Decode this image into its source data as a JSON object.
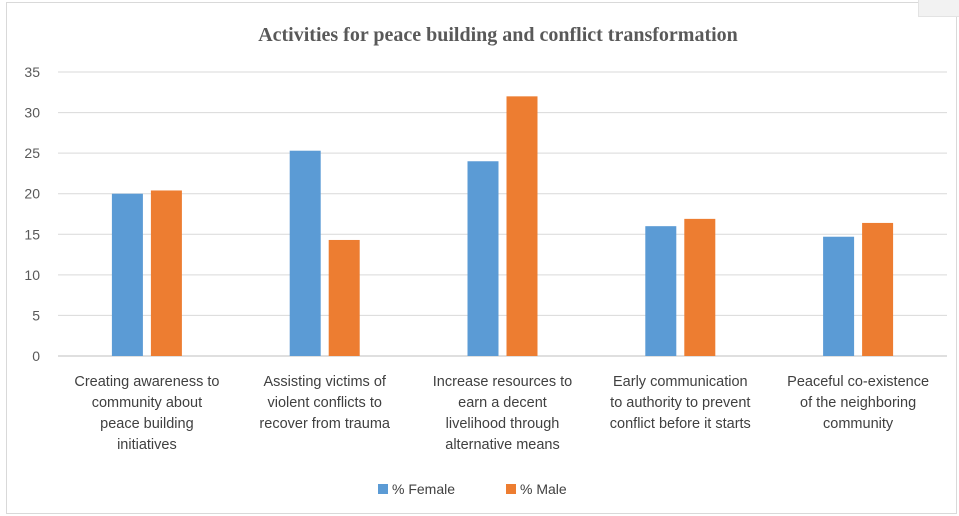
{
  "chart_data": {
    "type": "bar",
    "title": "Activities for peace building and conflict transformation",
    "categories": [
      [
        "Creating awareness to",
        "community about",
        "peace building",
        "initiatives"
      ],
      [
        "Assisting victims of",
        "violent conflicts to",
        "recover from trauma"
      ],
      [
        "Increase resources to",
        "earn a decent",
        "livelihood through",
        "alternative means"
      ],
      [
        "Early communication",
        "to authority to prevent",
        "conflict before it starts"
      ],
      [
        "Peaceful co-existence",
        "of the neighboring",
        "community"
      ]
    ],
    "series": [
      {
        "name": "% Female",
        "color": "#5b9bd5",
        "values": [
          20.0,
          25.3,
          24.0,
          16.0,
          14.7
        ]
      },
      {
        "name": "% Male",
        "color": "#ed7d31",
        "values": [
          20.4,
          14.3,
          32.0,
          16.9,
          16.4
        ]
      }
    ],
    "ylim": [
      0,
      35
    ],
    "yticks": [
      "0",
      "5",
      "10",
      "15",
      "20",
      "25",
      "30",
      "35"
    ],
    "grid": true,
    "legend_position": "bottom"
  }
}
